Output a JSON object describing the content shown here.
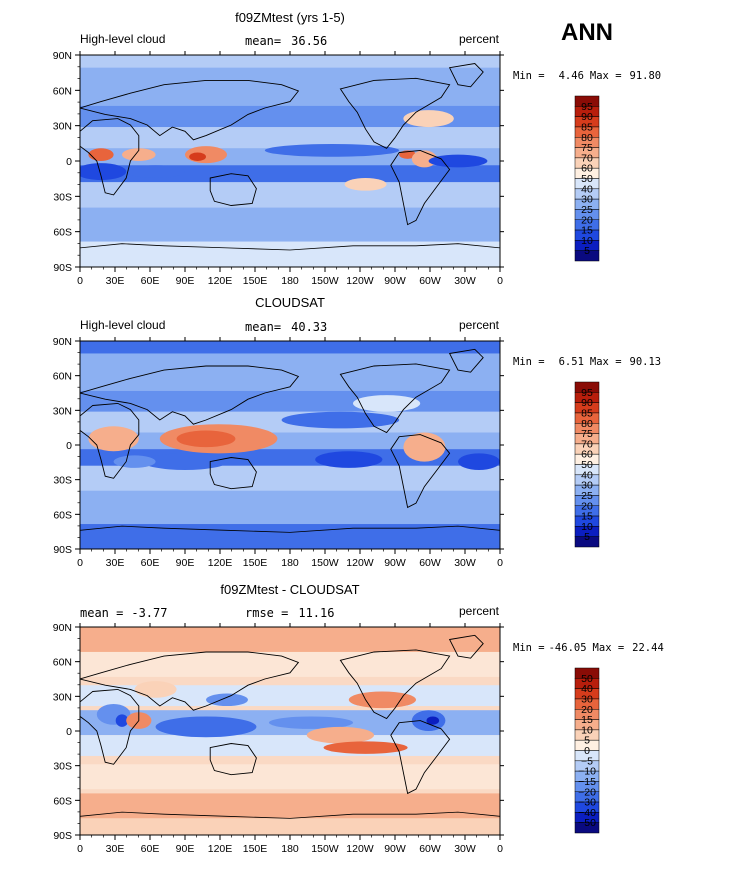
{
  "season": "ANN",
  "colors": {
    "levels_abs": [
      "#0a0a80",
      "#0b1ec0",
      "#1f48e0",
      "#3f6ee8",
      "#6490ee",
      "#8cb0f2",
      "#b4ccf6",
      "#d8e6fa",
      "#fff0e2",
      "#fad2b8",
      "#f6ae8c",
      "#f08a64",
      "#e8643c",
      "#d63c1c",
      "#b81e0c",
      "#8a0c06"
    ],
    "levels_diff": [
      "#0a0a80",
      "#0b1ec0",
      "#1f48e0",
      "#3f6ee8",
      "#6490ee",
      "#8cb0f2",
      "#b4ccf6",
      "#d8e6fa",
      "#fff0e2",
      "#fad2b8",
      "#f6ae8c",
      "#f08a64",
      "#e8643c",
      "#d63c1c",
      "#b81e0c",
      "#8a0c06"
    ]
  },
  "chart_data": [
    {
      "type": "heatmap",
      "title": "f09ZMtest (yrs 1-5)",
      "left_label": "High-level cloud",
      "stat_label": "mean=",
      "stat_value": "36.56",
      "right_label": "percent",
      "min_label": "Min =",
      "min_value": "4.46",
      "max_label": "Max =",
      "max_value": "91.80",
      "x_ticks": [
        "0",
        "30E",
        "60E",
        "90E",
        "120E",
        "150E",
        "180",
        "150W",
        "120W",
        "90W",
        "60W",
        "30W",
        "0"
      ],
      "y_ticks": [
        "90N",
        "60N",
        "30N",
        "0",
        "30S",
        "60S",
        "90S"
      ],
      "colorbar_labels": [
        "95",
        "90",
        "85",
        "80",
        "75",
        "70",
        "60",
        "50",
        "40",
        "30",
        "25",
        "20",
        "15",
        "10",
        "5"
      ],
      "colorbar_levels": [
        95,
        90,
        85,
        80,
        75,
        70,
        60,
        50,
        40,
        30,
        25,
        20,
        15,
        10,
        5
      ]
    },
    {
      "type": "heatmap",
      "title": "CLOUDSAT",
      "left_label": "High-level cloud",
      "stat_label": "mean=",
      "stat_value": "40.33",
      "right_label": "percent",
      "min_label": "Min =",
      "min_value": "6.51",
      "max_label": "Max =",
      "max_value": "90.13",
      "x_ticks": [
        "0",
        "30E",
        "60E",
        "90E",
        "120E",
        "150E",
        "180",
        "150W",
        "120W",
        "90W",
        "60W",
        "30W",
        "0"
      ],
      "y_ticks": [
        "90N",
        "60N",
        "30N",
        "0",
        "30S",
        "60S",
        "90S"
      ],
      "colorbar_labels": [
        "95",
        "90",
        "85",
        "80",
        "75",
        "70",
        "60",
        "50",
        "40",
        "30",
        "25",
        "20",
        "15",
        "10",
        "5"
      ],
      "colorbar_levels": [
        95,
        90,
        85,
        80,
        75,
        70,
        60,
        50,
        40,
        30,
        25,
        20,
        15,
        10,
        5
      ]
    },
    {
      "type": "heatmap",
      "title": "f09ZMtest - CLOUDSAT",
      "left_label": "mean =",
      "left_value": "-3.77",
      "stat_label": "rmse =",
      "stat_value": "11.16",
      "right_label": "percent",
      "min_label": "Min =",
      "min_value": "-46.05",
      "max_label": "Max =",
      "max_value": "22.44",
      "x_ticks": [
        "0",
        "30E",
        "60E",
        "90E",
        "120E",
        "150E",
        "180",
        "150W",
        "120W",
        "90W",
        "60W",
        "30W",
        "0"
      ],
      "y_ticks": [
        "90N",
        "60N",
        "30N",
        "0",
        "30S",
        "60S",
        "90S"
      ],
      "colorbar_labels": [
        "50",
        "40",
        "30",
        "20",
        "15",
        "10",
        "5",
        "0",
        "−5",
        "−10",
        "−15",
        "−20",
        "−30",
        "−40",
        "−50"
      ],
      "colorbar_levels": [
        50,
        40,
        30,
        20,
        15,
        10,
        5,
        0,
        -5,
        -10,
        -15,
        -20,
        -30,
        -40,
        -50
      ]
    }
  ]
}
